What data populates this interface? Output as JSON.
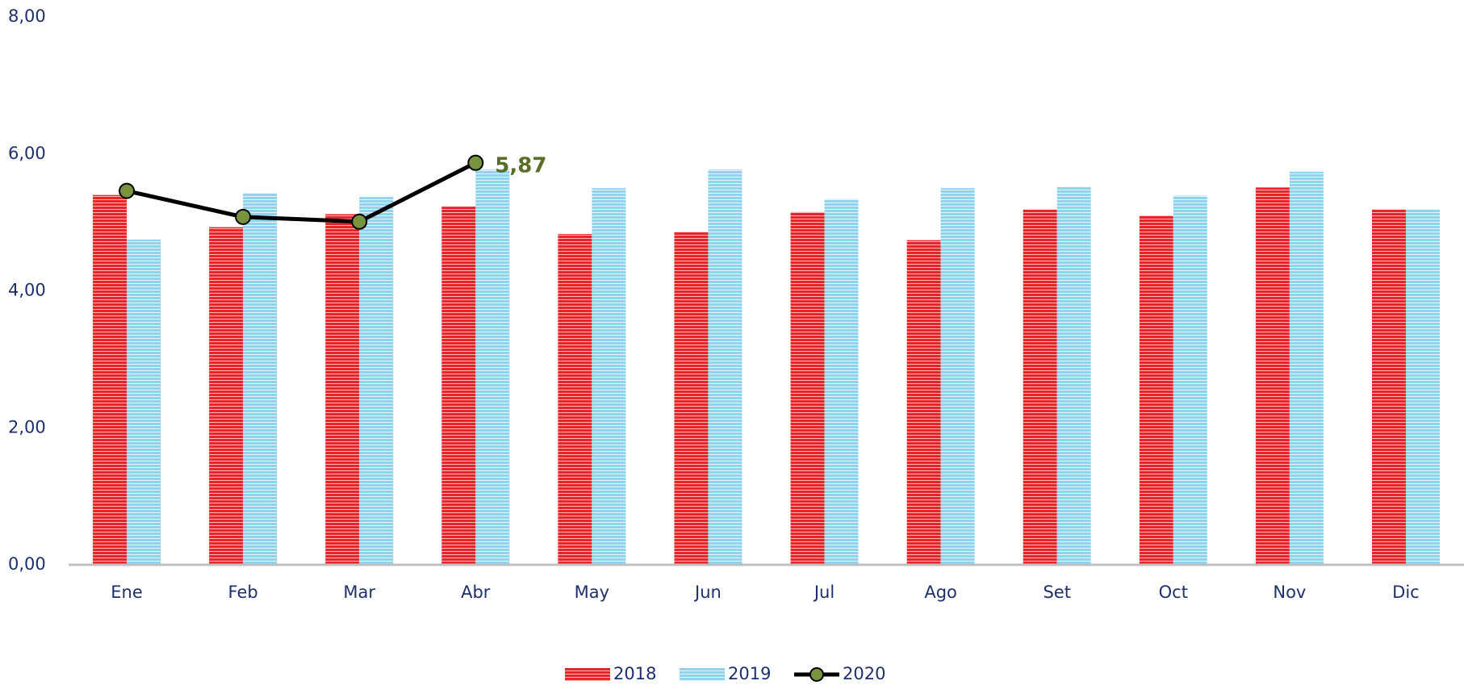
{
  "chart_data": {
    "type": "bar",
    "categories": [
      "Ene",
      "Feb",
      "Mar",
      "Abr",
      "May",
      "Jun",
      "Jul",
      "Ago",
      "Set",
      "Oct",
      "Nov",
      "Dic"
    ],
    "series": [
      {
        "name": "2018",
        "color": "#e8262a",
        "type": "bar",
        "values": [
          5.4,
          4.93,
          5.12,
          5.23,
          4.83,
          4.86,
          5.15,
          4.74,
          5.19,
          5.1,
          5.51,
          5.19
        ]
      },
      {
        "name": "2019",
        "color": "#8fd3ef",
        "type": "bar",
        "values": [
          4.75,
          5.43,
          5.37,
          5.77,
          5.5,
          5.77,
          5.34,
          5.5,
          5.52,
          5.39,
          5.74,
          5.19
        ]
      },
      {
        "name": "2020",
        "color": "#000000",
        "type": "line",
        "marker_color": "#77933c",
        "values": [
          5.46,
          5.08,
          5.01,
          5.87,
          null,
          null,
          null,
          null,
          null,
          null,
          null,
          null
        ],
        "value_labels": [
          null,
          null,
          null,
          "5,87",
          null,
          null,
          null,
          null,
          null,
          null,
          null,
          null
        ]
      }
    ],
    "ylim": [
      0,
      8
    ],
    "yticks": [
      {
        "value": 0,
        "label": "0,00"
      },
      {
        "value": 2,
        "label": "2,00"
      },
      {
        "value": 4,
        "label": "4,00"
      },
      {
        "value": 6,
        "label": "6,00"
      },
      {
        "value": 8,
        "label": "8,00"
      }
    ],
    "legend": "bottom"
  }
}
